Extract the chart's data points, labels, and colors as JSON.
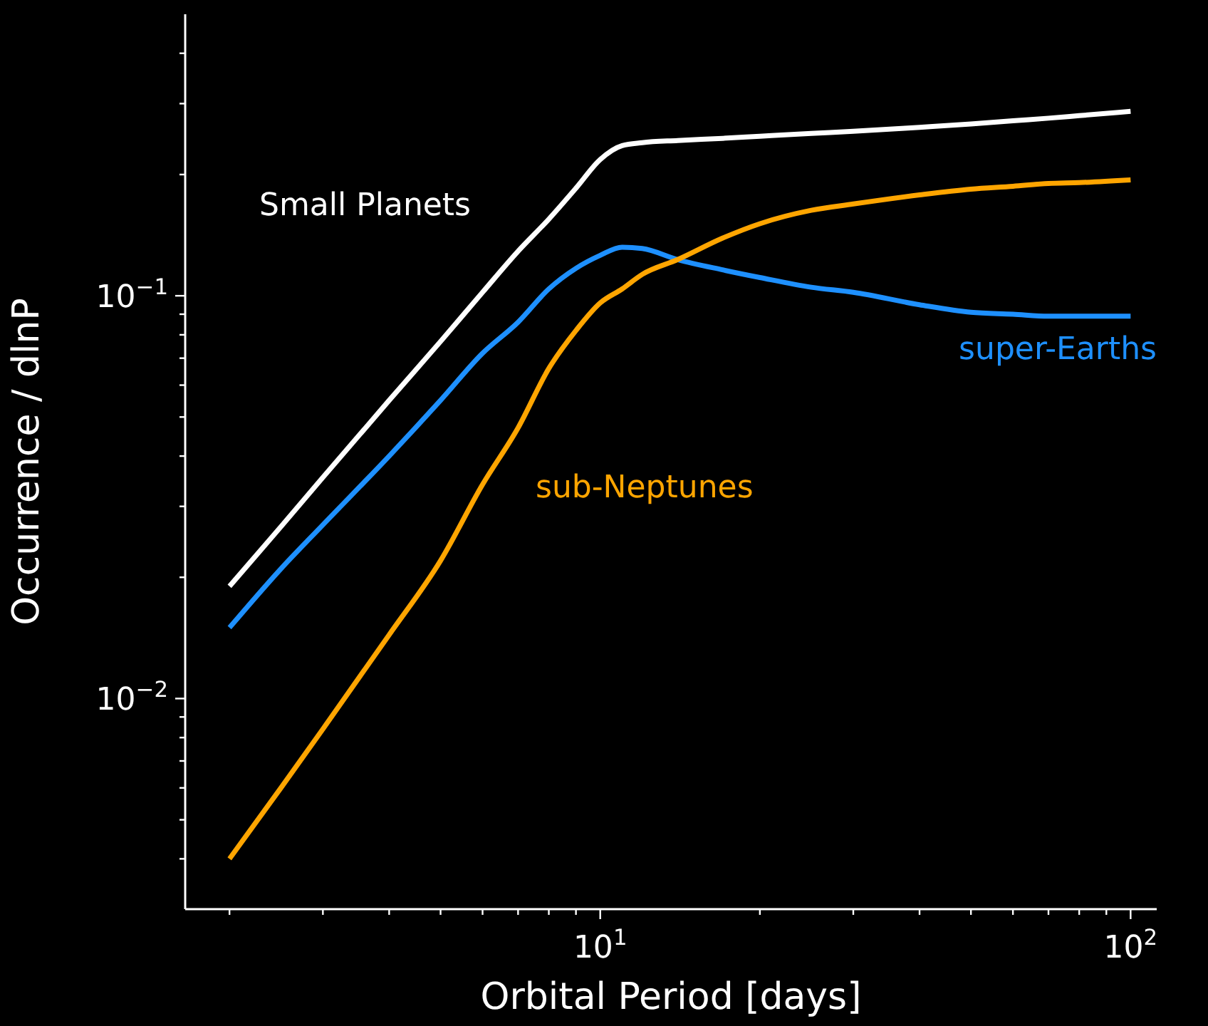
{
  "chart_data": {
    "type": "line",
    "xlabel": "Orbital Period [days]",
    "ylabel": "Occurrence / dlnP",
    "log": "xy",
    "line_style": "solid",
    "x": [
      2,
      2.5,
      3,
      4,
      5,
      6,
      7,
      8,
      9,
      10,
      11,
      12,
      14,
      17,
      20,
      25,
      30,
      40,
      50,
      60,
      70,
      80,
      100
    ],
    "series": [
      {
        "name": "Small Planets",
        "color": "#ffffff",
        "values": [
          0.019,
          0.0267,
          0.0354,
          0.055,
          0.077,
          0.102,
          0.129,
          0.155,
          0.185,
          0.218,
          0.236,
          0.24,
          0.243,
          0.246,
          0.249,
          0.253,
          0.256,
          0.262,
          0.267,
          0.272,
          0.276,
          0.28,
          0.287
        ]
      },
      {
        "name": "super-Earths",
        "color": "#1e90ff",
        "values": [
          0.015,
          0.021,
          0.027,
          0.04,
          0.055,
          0.072,
          0.086,
          0.104,
          0.117,
          0.126,
          0.132,
          0.131,
          0.123,
          0.116,
          0.111,
          0.105,
          0.102,
          0.095,
          0.091,
          0.09,
          0.089,
          0.089,
          0.089
        ]
      },
      {
        "name": "sub-Neptunes",
        "color": "#ffa500",
        "values": [
          0.004,
          0.006,
          0.0084,
          0.0144,
          0.022,
          0.034,
          0.047,
          0.066,
          0.082,
          0.096,
          0.104,
          0.113,
          0.123,
          0.139,
          0.151,
          0.163,
          0.169,
          0.178,
          0.184,
          0.187,
          0.19,
          0.191,
          0.194
        ]
      }
    ],
    "xlim": [
      1.65,
      112
    ],
    "xticks": [
      {
        "value": 2,
        "label": null
      },
      {
        "value": 3,
        "label": null
      },
      {
        "value": 4,
        "label": null
      },
      {
        "value": 5,
        "label": null
      },
      {
        "value": 6,
        "label": null
      },
      {
        "value": 7,
        "label": null
      },
      {
        "value": 8,
        "label": null
      },
      {
        "value": 9,
        "label": null
      },
      {
        "value": 10,
        "label": "10$^{1}$"
      },
      {
        "value": 20,
        "label": null
      },
      {
        "value": 30,
        "label": null
      },
      {
        "value": 40,
        "label": null
      },
      {
        "value": 50,
        "label": null
      },
      {
        "value": 60,
        "label": null
      },
      {
        "value": 70,
        "label": null
      },
      {
        "value": 80,
        "label": null
      },
      {
        "value": 90,
        "label": null
      },
      {
        "value": 100,
        "label": "10$^{2}$"
      }
    ],
    "ylim": [
      0.003,
      0.5
    ],
    "yticks": [
      {
        "value": 0.004,
        "label": null
      },
      {
        "value": 0.005,
        "label": null
      },
      {
        "value": 0.006,
        "label": null
      },
      {
        "value": 0.007,
        "label": null
      },
      {
        "value": 0.008,
        "label": null
      },
      {
        "value": 0.009,
        "label": null
      },
      {
        "value": 0.01,
        "label": "10$^{−2}$"
      },
      {
        "value": 0.02,
        "label": null
      },
      {
        "value": 0.03,
        "label": null
      },
      {
        "value": 0.04,
        "label": null
      },
      {
        "value": 0.05,
        "label": null
      },
      {
        "value": 0.06,
        "label": null
      },
      {
        "value": 0.07,
        "label": null
      },
      {
        "value": 0.08,
        "label": null
      },
      {
        "value": 0.09,
        "label": null
      },
      {
        "value": 0.1,
        "label": "10$^{−1}$"
      },
      {
        "value": 0.2,
        "label": null
      },
      {
        "value": 0.3,
        "label": null
      },
      {
        "value": 0.4,
        "label": null
      }
    ]
  }
}
